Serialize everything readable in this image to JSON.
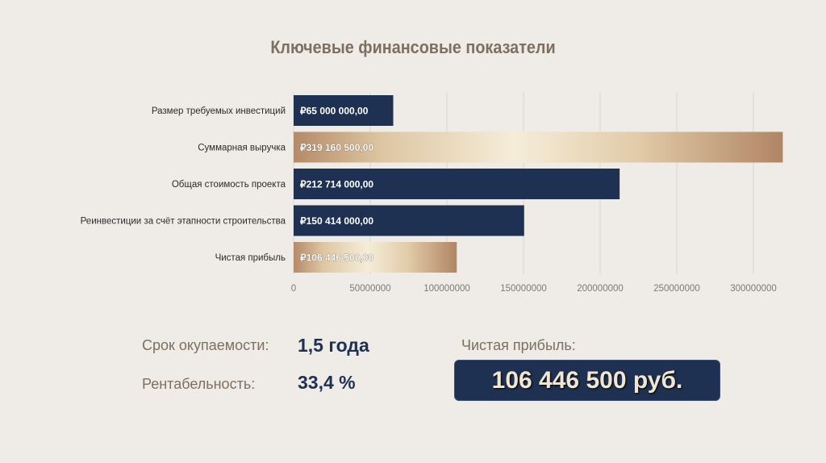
{
  "title": "Ключевые финансовые показатели",
  "chart_data": {
    "type": "bar",
    "orientation": "horizontal",
    "categories": [
      "Размер требуемых инвестиций",
      "Суммарная выручка",
      "Общая стоимость проекта",
      "Реинвестиции за счёт этапности строительства",
      "Чистая прибыль"
    ],
    "values": [
      65000000,
      319160500,
      212714000,
      150414000,
      106446500
    ],
    "data_labels": [
      "₽65 000 000,00",
      "₽319 160 500,00",
      "₽212 714 000,00",
      "₽150 414 000,00",
      "₽106 446 500,00"
    ],
    "bar_styles": [
      "navy",
      "gold",
      "navy",
      "navy",
      "gold"
    ],
    "xlim": [
      0,
      320000000
    ],
    "x_ticks": [
      0,
      50000000,
      100000000,
      150000000,
      200000000,
      250000000,
      300000000
    ],
    "x_tick_labels": [
      "0",
      "50000000",
      "100000000",
      "150000000",
      "200000000",
      "250000000",
      "300000000"
    ],
    "grid": true,
    "colors": {
      "navy": "#1e3152",
      "gold_light": "#f3ead3",
      "gold_dark": "#b58a68"
    }
  },
  "stats": {
    "payback_label": "Срок окупаемости:",
    "payback_value": "1,5 года",
    "profitability_label": "Рентабельность:",
    "profitability_value": "33,4 %",
    "net_profit_label": "Чистая прибыль:",
    "net_profit_value": "106 446 500 руб."
  }
}
